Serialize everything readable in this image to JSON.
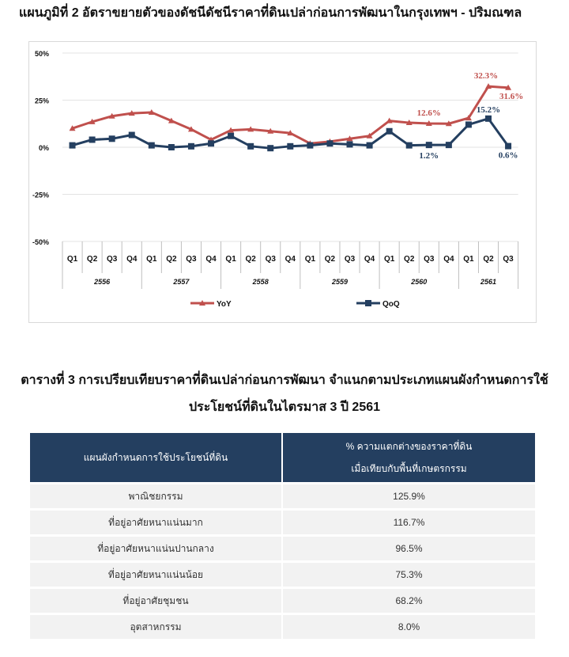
{
  "chart_title": "แผนภูมิที่ 2 อัตราขยายตัวของดัชนีดัชนีราคาที่ดินเปล่าก่อนการพัฒนาในกรุงเทพฯ - ปริมณฑล",
  "chart_data": {
    "type": "line",
    "title": "แผนภูมิที่ 2 อัตราขยายตัวของดัชนีดัชนีราคาที่ดินเปล่าก่อนการพัฒนาในกรุงเทพฯ - ปริมณฑล",
    "xlabel": "",
    "ylabel": "",
    "ylim": [
      -50,
      50
    ],
    "yticks": [
      "50%",
      "25%",
      "0%",
      "-25%",
      "-50%"
    ],
    "grid": true,
    "legend_position": "bottom",
    "categories": [
      "Q1",
      "Q2",
      "Q3",
      "Q4",
      "Q1",
      "Q2",
      "Q3",
      "Q4",
      "Q1",
      "Q2",
      "Q3",
      "Q4",
      "Q1",
      "Q2",
      "Q3",
      "Q4",
      "Q1",
      "Q2",
      "Q3",
      "Q4",
      "Q1",
      "Q2",
      "Q3"
    ],
    "year_groups": [
      {
        "label": "2556",
        "span": 4
      },
      {
        "label": "2557",
        "span": 4
      },
      {
        "label": "2558",
        "span": 4
      },
      {
        "label": "2559",
        "span": 4
      },
      {
        "label": "2560",
        "span": 4
      },
      {
        "label": "2561",
        "span": 3
      }
    ],
    "series": [
      {
        "name": "YoY",
        "color": "#c0504d",
        "marker": "triangle",
        "values": [
          10.0,
          13.5,
          16.5,
          18.0,
          18.5,
          14.0,
          9.5,
          4.0,
          9.0,
          9.5,
          8.5,
          7.5,
          2.0,
          3.0,
          4.5,
          6.0,
          14.0,
          13.0,
          12.6,
          12.5,
          15.5,
          32.3,
          31.6
        ]
      },
      {
        "name": "QoQ",
        "color": "#243f60",
        "marker": "square",
        "values": [
          1.0,
          4.0,
          4.5,
          6.5,
          1.0,
          0.0,
          0.5,
          2.0,
          6.0,
          0.5,
          -0.5,
          0.5,
          1.0,
          2.0,
          1.5,
          1.0,
          8.5,
          1.0,
          1.2,
          1.2,
          12.0,
          15.2,
          0.6
        ]
      }
    ],
    "annotations": [
      {
        "series": "YoY",
        "index": 18,
        "text": "12.6%"
      },
      {
        "series": "YoY",
        "index": 21,
        "text": "32.3%"
      },
      {
        "series": "YoY",
        "index": 22,
        "text": "31.6%"
      },
      {
        "series": "QoQ",
        "index": 18,
        "text": "1.2%"
      },
      {
        "series": "QoQ",
        "index": 21,
        "text": "15.2%"
      },
      {
        "series": "QoQ",
        "index": 22,
        "text": "0.6%"
      }
    ]
  },
  "table": {
    "title_line1": "ตารางที่ 3 การเปรียบเทียบราคาที่ดินเปล่าก่อนการพัฒนา จำแนกตามประเภทแผนผังกำหนดการใช้",
    "title_line2": "ประโยชน์ที่ดินในไตรมาส 3 ปี 2561",
    "header": {
      "col1": "แผนผังกำหนดการใช้ประโยชน์ที่ดิน",
      "col2_line1": "% ความแตกต่างของราคาที่ดิน",
      "col2_line2": "เมื่อเทียบกับพื้นที่เกษตรกรรม"
    },
    "rows": [
      {
        "category": "พาณิชยกรรม",
        "value": "125.9%"
      },
      {
        "category": "ที่อยู่อาศัยหนาแน่นมาก",
        "value": "116.7%"
      },
      {
        "category": "ที่อยู่อาศัยหนาแน่นปานกลาง",
        "value": "96.5%"
      },
      {
        "category": "ที่อยู่อาศัยหนาแน่นน้อย",
        "value": "75.3%"
      },
      {
        "category": "ที่อยู่อาศัยชุมชน",
        "value": "68.2%"
      },
      {
        "category": "อุตสาหกรรม",
        "value": "8.0%"
      }
    ]
  }
}
